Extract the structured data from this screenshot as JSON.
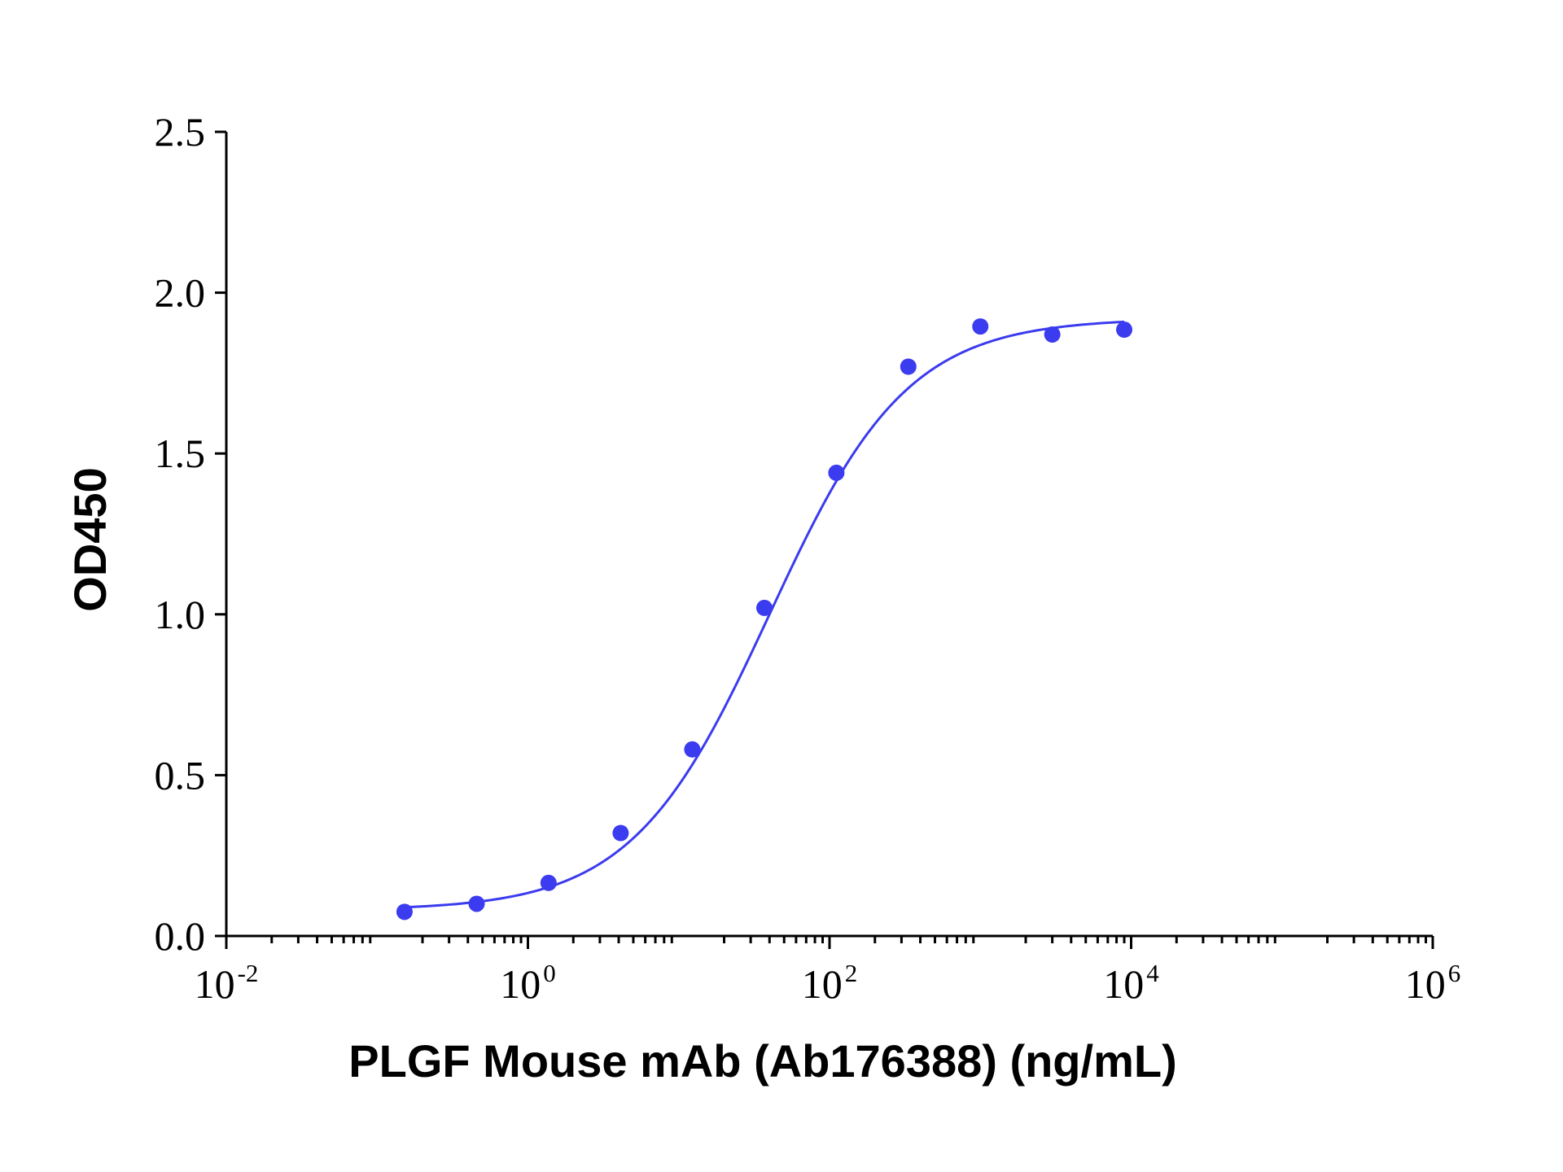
{
  "chart_data": {
    "type": "scatter",
    "title": "",
    "xlabel": "PLGF Mouse mAb (Ab176388) (ng/mL)",
    "ylabel": "OD450",
    "x_scale": "log",
    "xlim": [
      0.01,
      1000000
    ],
    "ylim": [
      0,
      2.5
    ],
    "x_ticks": [
      {
        "base": "10",
        "exp": "-2"
      },
      {
        "base": "10",
        "exp": "0"
      },
      {
        "base": "10",
        "exp": "2"
      },
      {
        "base": "10",
        "exp": "4"
      },
      {
        "base": "10",
        "exp": "6"
      }
    ],
    "y_ticks": [
      "0.0",
      "0.5",
      "1.0",
      "1.5",
      "2.0",
      "2.5"
    ],
    "grid": false,
    "legend": "none",
    "color": "#3b3bef",
    "series": [
      {
        "x": [
          0.152,
          0.457,
          1.37,
          4.12,
          12.3,
          37.0,
          111,
          333,
          1000,
          3000,
          9000
        ],
        "y": [
          0.075,
          0.1,
          0.165,
          0.32,
          0.58,
          1.02,
          1.44,
          1.77,
          1.895,
          1.87,
          1.885
        ]
      }
    ],
    "fit_curve": {
      "model": "4PL",
      "bottom": 0.08,
      "top": 1.92,
      "ec50": 40,
      "hill": 0.95,
      "x_range": [
        0.152,
        9000
      ]
    }
  }
}
